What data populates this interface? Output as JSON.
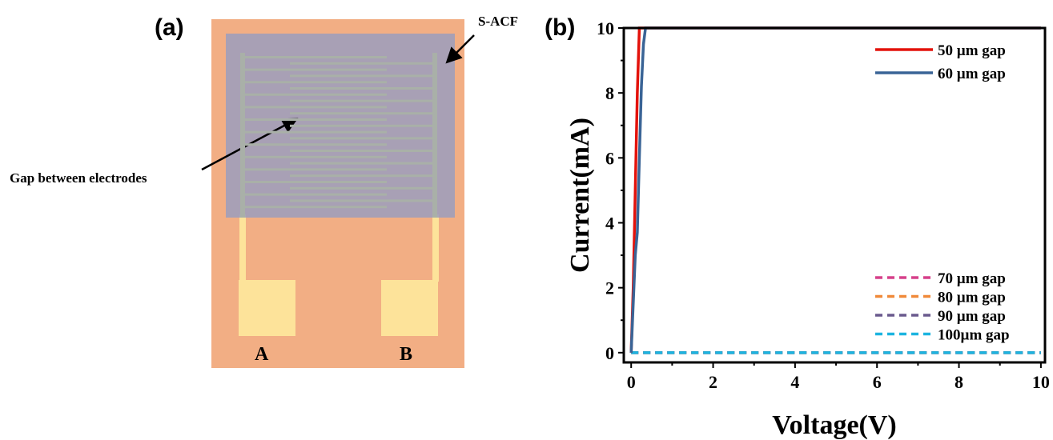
{
  "diagram": {
    "panel_label": "(a)",
    "film_label": "S-ACF",
    "gap_label": "Gap between electrodes",
    "pad_a": "A",
    "pad_b": "B"
  },
  "chart_data": {
    "type": "line",
    "panel_label": "(b)",
    "x_label": "Voltage(V)",
    "y_label": "Current(mA)",
    "xlim": [
      -0.18,
      10.1
    ],
    "ylim": [
      -0.3,
      10
    ],
    "xticks": [
      0,
      2,
      4,
      6,
      8,
      10
    ],
    "yticks": [
      0,
      2,
      4,
      6,
      8,
      10
    ],
    "series": [
      {
        "name": "50 µm gap",
        "color": "#e3120b",
        "linestyle": "solid",
        "x": [
          0,
          0.05,
          0.1,
          0.15,
          0.2,
          10
        ],
        "values": [
          0,
          2,
          5,
          8,
          10,
          10
        ]
      },
      {
        "name": "60 µm gap",
        "color": "#3a6496",
        "linestyle": "solid",
        "x": [
          0,
          0.1,
          0.15,
          0.2,
          0.25,
          0.3,
          0.35,
          10
        ],
        "values": [
          0,
          3,
          3.7,
          6,
          8.2,
          9.5,
          10,
          10
        ]
      },
      {
        "name": "70 µm gap",
        "color": "#d6408a",
        "linestyle": "dashed",
        "x": [
          0,
          10
        ],
        "values": [
          0,
          0
        ]
      },
      {
        "name": "80 µm gap",
        "color": "#f08a3a",
        "linestyle": "dashed",
        "x": [
          0,
          10
        ],
        "values": [
          0,
          0
        ]
      },
      {
        "name": "90 µm gap",
        "color": "#6a5a8e",
        "linestyle": "dashed",
        "x": [
          0,
          10
        ],
        "values": [
          0,
          0
        ]
      },
      {
        "name": "100µm gap",
        "color": "#1cb4e0",
        "linestyle": "dashed",
        "x": [
          0,
          10
        ],
        "values": [
          0,
          0
        ]
      }
    ]
  }
}
